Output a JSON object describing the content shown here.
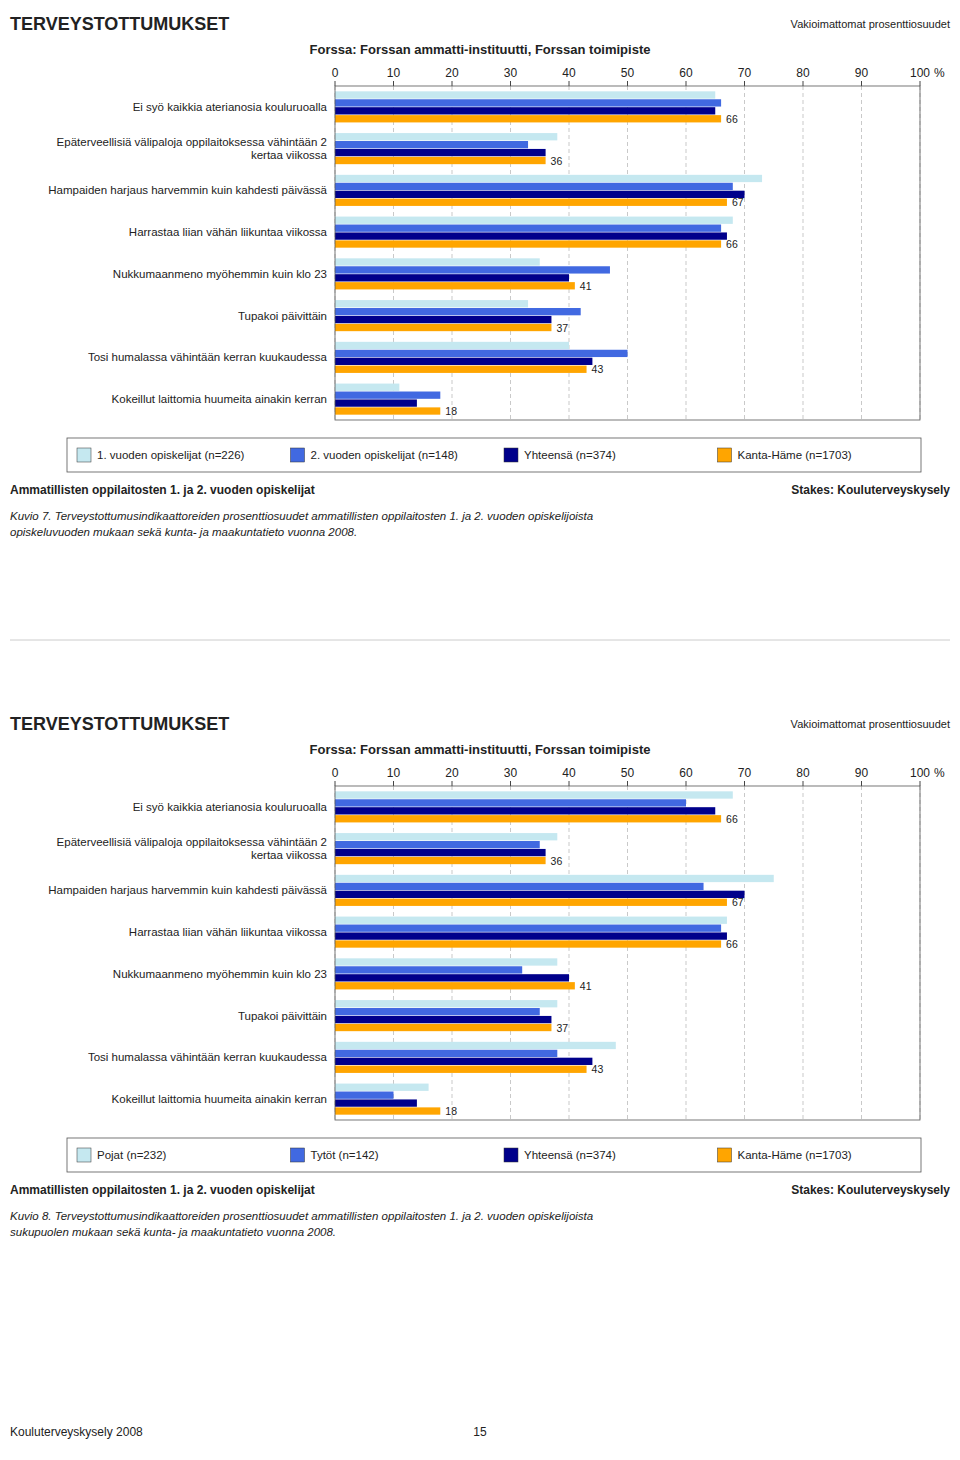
{
  "chart_data": [
    {
      "type": "bar",
      "orientation": "horizontal",
      "title": "TERVEYSTOTTUMUKSET",
      "subtitle": "Forssa: Forssan ammatti-instituutti, Forssan toimipiste",
      "annotations": [
        "Vakioimattomat prosenttiosuudet",
        "Ammatillisten oppilaitosten 1. ja 2. vuoden opiskelijat",
        "Stakes: Kouluterveyskysely",
        "Kuvio 7. Terveystottumusindikaattoreiden prosenttiosuudet ammatillisten oppilaitosten 1. ja 2. vuoden opiskelijoista\nopiskeluvuoden mukaan sekä kunta- ja maakuntatieto vuonna 2008."
      ],
      "x_label": "%",
      "categories": [
        "Ei syö kaikkia aterianosia kouluruoalla",
        "Epäterveellisiä välipaloja oppilaitoksessa vähintään 2\nkertaa viikossa",
        "Hampaiden harjaus harvemmin kuin kahdesti päivässä",
        "Harrastaa liian vähän liikuntaa viikossa",
        "Nukkumaanmeno myöhemmin kuin klo 23",
        "Tupakoi päivittäin",
        "Tosi humalassa vähintään kerran kuukaudessa",
        "Kokeillut laittomia huumeita ainakin kerran"
      ],
      "series": [
        {
          "name": "1. vuoden opiskelijat (n=226)",
          "color": "#C5E8F0",
          "values": [
            65,
            38,
            73,
            68,
            35,
            33,
            40,
            11
          ]
        },
        {
          "name": "2. vuoden opiskelijat (n=148)",
          "color": "#4169E1",
          "values": [
            66,
            33,
            68,
            66,
            47,
            42,
            50,
            18
          ]
        },
        {
          "name": "Yhteensä (n=374)",
          "color": "#00008B",
          "values": [
            65,
            36,
            70,
            67,
            40,
            37,
            44,
            14
          ]
        },
        {
          "name": "Kanta-Häme (n=1703)",
          "color": "#FFA500",
          "values": [
            66,
            36,
            67,
            66,
            41,
            37,
            43,
            18
          ],
          "data_labels": true
        }
      ],
      "xlim": [
        0,
        100
      ],
      "xticks": [
        0,
        10,
        20,
        30,
        40,
        50,
        60,
        70,
        80,
        90,
        100
      ],
      "grid": true,
      "legend": "bottom"
    },
    {
      "type": "bar",
      "orientation": "horizontal",
      "title": "TERVEYSTOTTUMUKSET",
      "subtitle": "Forssa: Forssan ammatti-instituutti, Forssan toimipiste",
      "annotations": [
        "Vakioimattomat prosenttiosuudet",
        "Ammatillisten oppilaitosten 1. ja 2. vuoden opiskelijat",
        "Stakes: Kouluterveyskysely",
        "Kuvio 8. Terveystottumusindikaattoreiden prosenttiosuudet ammatillisten oppilaitosten 1. ja 2. vuoden opiskelijoista\nsukupuolen mukaan sekä kunta- ja maakuntatieto vuonna 2008."
      ],
      "x_label": "%",
      "categories": [
        "Ei syö kaikkia aterianosia kouluruoalla",
        "Epäterveellisiä välipaloja oppilaitoksessa vähintään 2\nkertaa viikossa",
        "Hampaiden harjaus harvemmin kuin kahdesti päivässä",
        "Harrastaa liian vähän liikuntaa viikossa",
        "Nukkumaanmeno myöhemmin kuin klo 23",
        "Tupakoi päivittäin",
        "Tosi humalassa vähintään kerran kuukaudessa",
        "Kokeillut laittomia huumeita ainakin kerran"
      ],
      "series": [
        {
          "name": "Pojat (n=232)",
          "color": "#C5E8F0",
          "values": [
            68,
            38,
            75,
            67,
            38,
            38,
            48,
            16
          ]
        },
        {
          "name": "Tytöt (n=142)",
          "color": "#4169E1",
          "values": [
            60,
            35,
            63,
            66,
            32,
            35,
            38,
            10
          ]
        },
        {
          "name": "Yhteensä (n=374)",
          "color": "#00008B",
          "values": [
            65,
            36,
            70,
            67,
            40,
            37,
            44,
            14
          ]
        },
        {
          "name": "Kanta-Häme (n=1703)",
          "color": "#FFA500",
          "values": [
            66,
            36,
            67,
            66,
            41,
            37,
            43,
            18
          ],
          "data_labels": true
        }
      ],
      "xlim": [
        0,
        100
      ],
      "xticks": [
        0,
        10,
        20,
        30,
        40,
        50,
        60,
        70,
        80,
        90,
        100
      ],
      "grid": true,
      "legend": "bottom"
    }
  ],
  "annotations": [
    "Kouluterveyskysely 2008",
    "15"
  ]
}
